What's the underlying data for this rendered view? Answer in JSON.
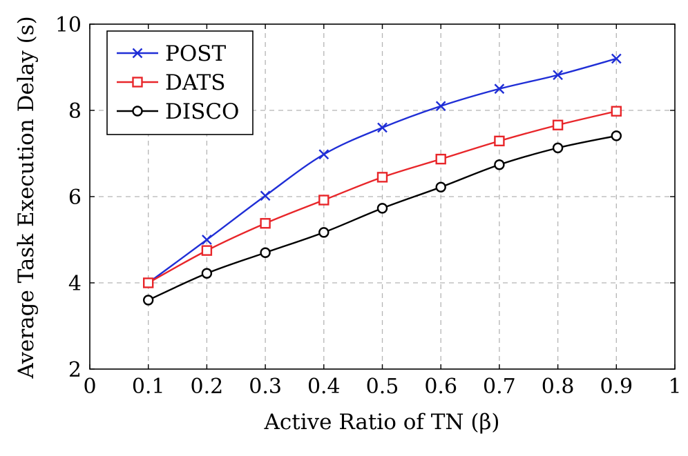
{
  "chart_data": {
    "type": "line",
    "title": "",
    "xlabel": "Active Ratio of TN (β)",
    "ylabel": "Average Task Execution Delay (s)",
    "xlim": [
      0,
      1
    ],
    "ylim": [
      2,
      10
    ],
    "xticks": [
      0,
      0.1,
      0.2,
      0.3,
      0.4,
      0.5,
      0.6,
      0.7,
      0.8,
      0.9,
      1
    ],
    "xtick_labels": [
      "0",
      "0.1",
      "0.2",
      "0.3",
      "0.4",
      "0.5",
      "0.6",
      "0.7",
      "0.8",
      "0.9",
      "1"
    ],
    "yticks": [
      2,
      4,
      6,
      8,
      10
    ],
    "ytick_labels": [
      "2",
      "4",
      "6",
      "8",
      "10"
    ],
    "grid": true,
    "legend_position": "top-left",
    "x": [
      0.1,
      0.2,
      0.3,
      0.4,
      0.5,
      0.6,
      0.7,
      0.8,
      0.9
    ],
    "series": [
      {
        "name": "POST",
        "color": "#1f2ed6",
        "marker": "x",
        "values": [
          4.0,
          5.0,
          6.02,
          6.98,
          7.6,
          8.1,
          8.5,
          8.82,
          9.2
        ]
      },
      {
        "name": "DATS",
        "color": "#e8262a",
        "marker": "square",
        "values": [
          4.0,
          4.75,
          5.38,
          5.92,
          6.45,
          6.87,
          7.29,
          7.66,
          7.98
        ]
      },
      {
        "name": "DISCO",
        "color": "#000000",
        "marker": "circle",
        "values": [
          3.6,
          4.22,
          4.7,
          5.17,
          5.73,
          6.22,
          6.74,
          7.13,
          7.41
        ]
      }
    ]
  }
}
